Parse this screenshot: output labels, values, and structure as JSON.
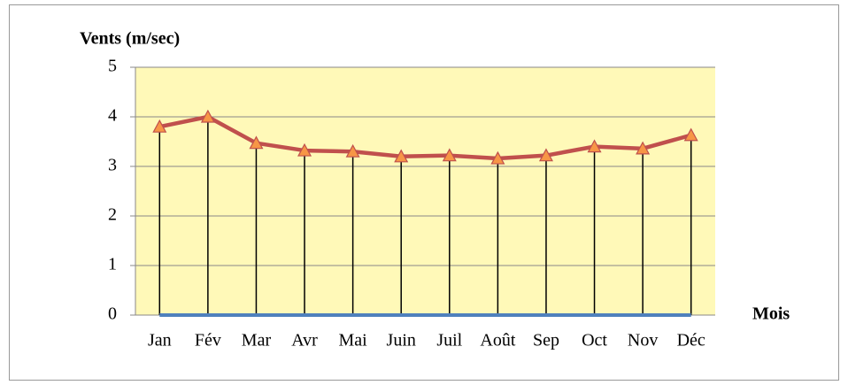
{
  "chart_data": {
    "type": "line",
    "y_label": "Vents (m/sec)",
    "x_label": "Mois",
    "categories": [
      "Jan",
      "Fév",
      "Mar",
      "Avr",
      "Mai",
      "Juin",
      "Juil",
      "Août",
      "Sep",
      "Oct",
      "Nov",
      "Déc"
    ],
    "values": [
      3.8,
      4.0,
      3.47,
      3.32,
      3.3,
      3.2,
      3.22,
      3.16,
      3.22,
      3.4,
      3.36,
      3.63
    ],
    "color": "#c0504d",
    "marker": "triangle",
    "marker_color": "#f79646",
    "drop_lines": true,
    "plot_background": "#fff9b8",
    "x_axis_color": "#4f81bd",
    "ylim": [
      0,
      5
    ],
    "yticks": [
      0,
      1,
      2,
      3,
      4,
      5
    ],
    "grid": true
  }
}
